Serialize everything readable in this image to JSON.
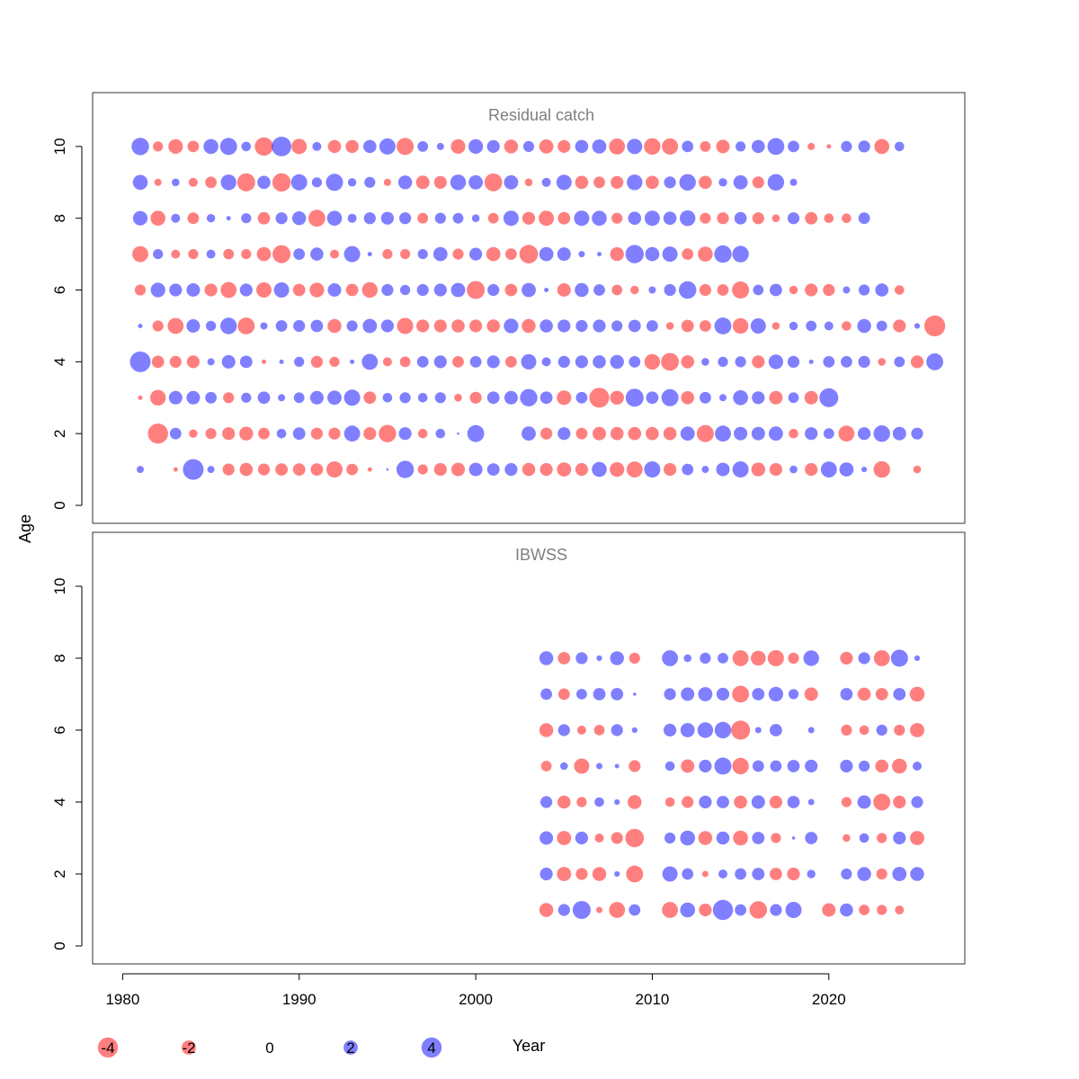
{
  "chart_data": {
    "type": "scatter",
    "subtype": "bubble",
    "xlabel": "Year",
    "ylabel": "Age",
    "xlim": [
      1978.3,
      2027.7
    ],
    "x_ticks": [
      1980,
      1990,
      2000,
      2010,
      2020
    ],
    "y_ticks": [
      0,
      2,
      4,
      6,
      8,
      10
    ],
    "colors": {
      "negative": "#ff0000",
      "positive": "#0000ff",
      "alpha": 0.5,
      "frame": "#333333",
      "panel_title": "#7f7f7f"
    },
    "legend": {
      "placement": "bottom",
      "values": [
        -4,
        -2,
        0,
        2,
        4
      ],
      "labels": [
        "-4",
        "-2",
        "0",
        "2",
        "4"
      ]
    },
    "panels": [
      {
        "title": "Residual catch",
        "ylim": [
          -0.5,
          11.5
        ],
        "years_start": 1981,
        "ages": [
          1,
          2,
          3,
          4,
          5,
          6,
          7,
          8,
          9,
          10
        ],
        "residuals": {
          "1": [
            0.5,
            0,
            -0.2,
            4.2,
            0.5,
            -1.4,
            -1.7,
            -1.4,
            -1.5,
            -1.5,
            -1.5,
            -2.6,
            -1.3,
            -0.2,
            0.05,
            3.0,
            -1.0,
            -1.6,
            -1.8,
            1.8,
            1.5,
            1.6,
            -1.7,
            -1.6,
            -2.0,
            -1.6,
            2.2,
            -2.1,
            -2.5,
            2.6,
            -1.6,
            1.3,
            0.5,
            1.8,
            2.6,
            -1.9,
            -1.6,
            0.6,
            -1.6,
            2.5,
            2.0,
            0.3,
            -2.7,
            0.0,
            -0.6
          ],
          "2": [
            0,
            -4.0,
            1.3,
            -0.7,
            -1.2,
            -1.6,
            -1.9,
            -1.3,
            0.9,
            1.5,
            -1.4,
            -1.4,
            2.5,
            -1.6,
            -3.0,
            1.6,
            -0.9,
            0.9,
            0.05,
            2.8,
            0,
            0,
            2.0,
            -1.4,
            1.6,
            -1.3,
            -1.8,
            -1.7,
            -1.7,
            -1.7,
            -1.7,
            2.0,
            -2.9,
            2.5,
            1.8,
            1.8,
            2.0,
            -0.9,
            1.6,
            1.1,
            -2.5,
            1.6,
            2.7,
            1.8,
            1.4
          ],
          "3": [
            -0.2,
            -2.4,
            1.8,
            1.8,
            1.3,
            -1.2,
            1.0,
            1.5,
            0.5,
            1.1,
            1.8,
            2.0,
            2.6,
            -1.5,
            0.9,
            1.2,
            0.9,
            1.2,
            -0.6,
            -1.4,
            1.5,
            1.8,
            3.0,
            1.5,
            -2.1,
            1.3,
            -3.9,
            -1.9,
            3.2,
            1.5,
            2.9,
            -1.7,
            1.3,
            0.5,
            2.2,
            1.6,
            -1.8,
            1.1,
            -1.8,
            3.5
          ],
          "4": [
            4.2,
            -1.5,
            -1.4,
            -1.6,
            0.5,
            1.8,
            1.5,
            -0.2,
            0.2,
            1.0,
            -1.4,
            -1.0,
            0.2,
            2.5,
            -0.8,
            -1.1,
            1.3,
            1.6,
            -1.3,
            1.3,
            1.6,
            -1.3,
            2.3,
            0.8,
            1.4,
            1.6,
            1.7,
            1.9,
            1.3,
            -2.4,
            -3.1,
            -1.7,
            0.6,
            1.0,
            1.2,
            -1.6,
            2.1,
            1.4,
            0.2,
            1.3,
            1.3,
            1.4,
            -0.6,
            1.1,
            -1.6,
            2.8
          ],
          "5": [
            0.2,
            -1.2,
            -2.5,
            1.8,
            1.0,
            2.7,
            -2.8,
            0.5,
            1.3,
            1.4,
            1.5,
            -1.9,
            1.2,
            2.0,
            1.6,
            -2.6,
            -1.6,
            -1.6,
            -1.7,
            -1.6,
            -1.7,
            2.1,
            -1.9,
            1.7,
            1.6,
            1.4,
            1.6,
            1.2,
            1.5,
            1.3,
            -0.6,
            -1.5,
            -1.3,
            2.8,
            -2.4,
            2.3,
            -0.6,
            0.7,
            1.1,
            0.8,
            -0.9,
            1.9,
            1.1,
            -1.6,
            0.3,
            -4.3
          ],
          "6": [
            -1.2,
            2.1,
            1.6,
            1.8,
            -1.6,
            -2.5,
            1.6,
            -2.3,
            2.3,
            -1.5,
            -2.1,
            1.8,
            -1.5,
            -2.4,
            1.4,
            1.0,
            1.4,
            1.6,
            2.0,
            -3.2,
            1.4,
            -1.5,
            2.0,
            0.2,
            -1.8,
            1.9,
            1.3,
            -1.1,
            -0.7,
            0.5,
            1.4,
            3.0,
            -1.4,
            -1.3,
            -2.9,
            1.1,
            1.5,
            -0.7,
            -1.6,
            -1.4,
            0.5,
            1.2,
            1.7,
            -0.9
          ],
          "7": [
            -2.5,
            1.0,
            -0.8,
            -1.0,
            0.8,
            -1.1,
            -1.0,
            -2.0,
            -3.2,
            1.3,
            1.7,
            -0.8,
            2.6,
            0.2,
            -1.0,
            -1.0,
            1.0,
            2.0,
            -1.2,
            1.6,
            -2.0,
            -1.3,
            -3.4,
            2.0,
            1.8,
            0.4,
            0.2,
            -1.9,
            3.3,
            2.0,
            2.3,
            -1.3,
            -2.2,
            3.0,
            2.7
          ],
          "8": [
            2.1,
            -2.2,
            0.8,
            -1.3,
            0.7,
            0.2,
            1.0,
            -1.5,
            1.4,
            1.9,
            -2.8,
            2.2,
            0.8,
            1.4,
            1.6,
            1.4,
            -1.1,
            1.2,
            1.1,
            0.6,
            -1.1,
            2.3,
            -1.6,
            -2.3,
            -1.5,
            2.3,
            2.2,
            -1.2,
            1.7,
            2.3,
            1.7,
            2.4,
            -1.2,
            -1.4,
            1.5,
            -1.4,
            -0.6,
            1.4,
            -1.5,
            -0.9,
            -0.9,
            1.3
          ],
          "9": [
            2.2,
            -0.5,
            0.6,
            -0.8,
            -1.3,
            2.4,
            -3.2,
            1.7,
            -3.3,
            2.6,
            1.0,
            2.9,
            0.7,
            1.2,
            -0.5,
            1.9,
            -1.8,
            -1.6,
            2.4,
            2.0,
            -3.1,
            2.0,
            -0.6,
            0.8,
            2.3,
            -1.7,
            -1.3,
            -1.6,
            2.4,
            -1.7,
            1.4,
            2.7,
            -1.7,
            0.7,
            2.0,
            -1.4,
            2.7,
            0.5
          ],
          "10": [
            3.0,
            -1.0,
            -2.1,
            -1.3,
            2.2,
            2.9,
            0.9,
            -3.3,
            3.8,
            -2.3,
            0.8,
            -1.7,
            -1.7,
            1.7,
            2.6,
            -2.9,
            1.1,
            0.5,
            -2.1,
            2.1,
            1.6,
            -1.9,
            1.2,
            -2.0,
            -1.6,
            1.7,
            2.0,
            -2.5,
            2.3,
            -2.7,
            -2.6,
            1.3,
            -1.1,
            -1.8,
            1.0,
            1.7,
            2.8,
            1.3,
            -0.5,
            -0.2,
            1.2,
            1.4,
            -2.2,
            0.9
          ]
        }
      },
      {
        "title": "IBWSS",
        "ylim": [
          -0.5,
          11.5
        ],
        "years_start": 2004,
        "ages": [
          1,
          2,
          3,
          4,
          5,
          6,
          7,
          8
        ],
        "residuals": {
          "1": [
            -1.9,
            1.4,
            3.2,
            -0.4,
            -2.5,
            1.3,
            null,
            -2.5,
            2.2,
            -1.6,
            4.0,
            1.3,
            -3.0,
            1.4,
            2.6,
            null,
            -1.8,
            1.7,
            -1.1,
            -1.0,
            -0.8
          ],
          "2": [
            1.6,
            -2.0,
            -1.4,
            -1.9,
            0.3,
            -2.8,
            null,
            2.3,
            1.3,
            -0.4,
            0.8,
            1.3,
            1.5,
            -1.5,
            -1.6,
            0.7,
            null,
            1.2,
            1.9,
            -1.2,
            2.0,
            1.9
          ],
          "3": [
            1.8,
            -2.0,
            1.6,
            -0.8,
            -1.4,
            -3.4,
            null,
            1.2,
            2.2,
            -1.9,
            1.7,
            -2.2,
            1.5,
            -1.0,
            0.1,
            1.5,
            null,
            -0.6,
            0.9,
            -1.0,
            1.6,
            -2.0
          ],
          "4": [
            1.4,
            -1.7,
            -1.0,
            0.9,
            0.3,
            -1.9,
            null,
            -0.9,
            -1.4,
            1.6,
            1.5,
            -1.7,
            1.8,
            -1.6,
            1.5,
            0.4,
            null,
            -1.0,
            1.8,
            -2.8,
            -1.6,
            1.4
          ],
          "5": [
            -1.1,
            0.6,
            -2.3,
            0.4,
            0.2,
            -1.4,
            null,
            0.9,
            -1.8,
            1.6,
            2.9,
            -2.7,
            1.3,
            1.3,
            1.5,
            1.6,
            null,
            1.6,
            1.2,
            -1.7,
            -2.2,
            0.8
          ],
          "6": [
            -1.9,
            1.4,
            -0.8,
            -1.1,
            1.4,
            0.3,
            null,
            1.6,
            2.0,
            2.4,
            2.7,
            -3.6,
            0.4,
            1.5,
            null,
            0.4,
            null,
            -1.2,
            -0.9,
            1.2,
            -1.2,
            -2.0
          ],
          "7": [
            1.3,
            -1.3,
            1.1,
            1.5,
            1.5,
            0.1,
            null,
            1.4,
            1.8,
            2.0,
            1.6,
            -2.8,
            1.5,
            2.1,
            1.0,
            -1.8,
            null,
            1.5,
            -1.7,
            -1.5,
            1.5,
            -2.2
          ],
          "8": [
            1.9,
            -1.5,
            1.4,
            0.3,
            1.9,
            -1.2,
            null,
            2.5,
            0.6,
            1.2,
            1.1,
            -2.5,
            -2.2,
            -2.6,
            -1.2,
            2.4,
            null,
            -1.6,
            1.4,
            -2.5,
            2.9,
            0.3
          ]
        }
      }
    ]
  }
}
